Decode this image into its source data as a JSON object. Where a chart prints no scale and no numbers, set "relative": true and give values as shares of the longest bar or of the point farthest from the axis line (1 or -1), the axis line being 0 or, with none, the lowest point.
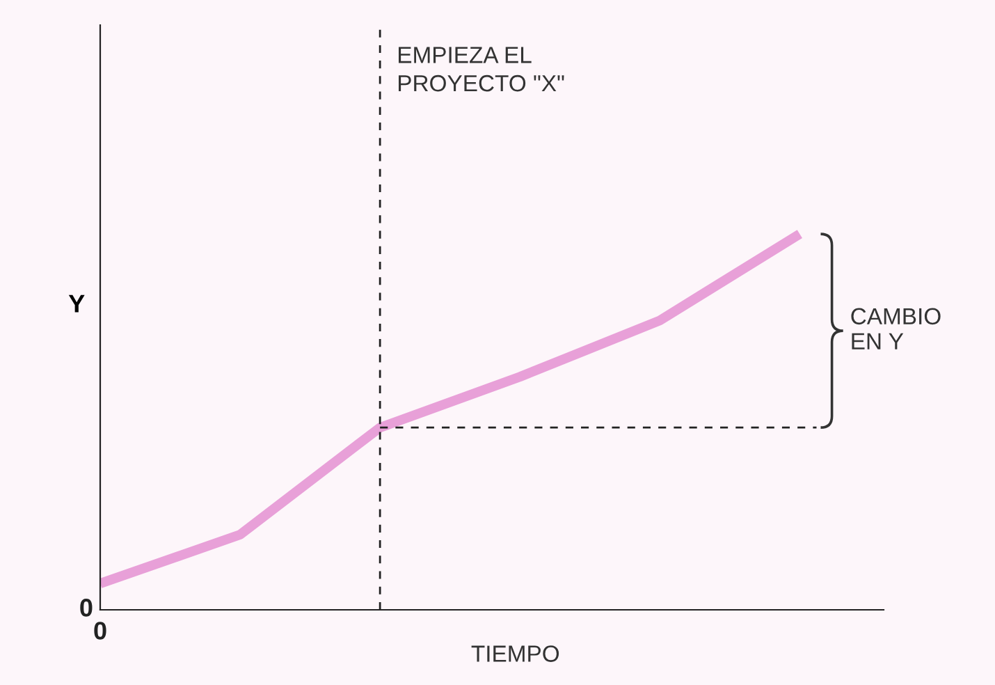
{
  "chart_data": {
    "type": "line",
    "relative": true,
    "xlabel": "TIEMPO",
    "ylabel": "Y",
    "categories": [
      null,
      null,
      null,
      null,
      null,
      null
    ],
    "series": [
      {
        "color": "#e8a0d8",
        "values": [
          0.07,
          0.2,
          0.485,
          0.62,
          0.77,
          1
        ]
      }
    ],
    "ref_lines": [
      {
        "axis": "y",
        "value": 0.485,
        "color": "#222222",
        "line_style": "dashed"
      }
    ],
    "annotations": [
      "CAMBIO\nEN Y",
      "0",
      "0",
      "EMPIEZA EL\nPROYECTO \"X\""
    ],
    "legend": false,
    "marker": "none",
    "line_style": "solid"
  }
}
